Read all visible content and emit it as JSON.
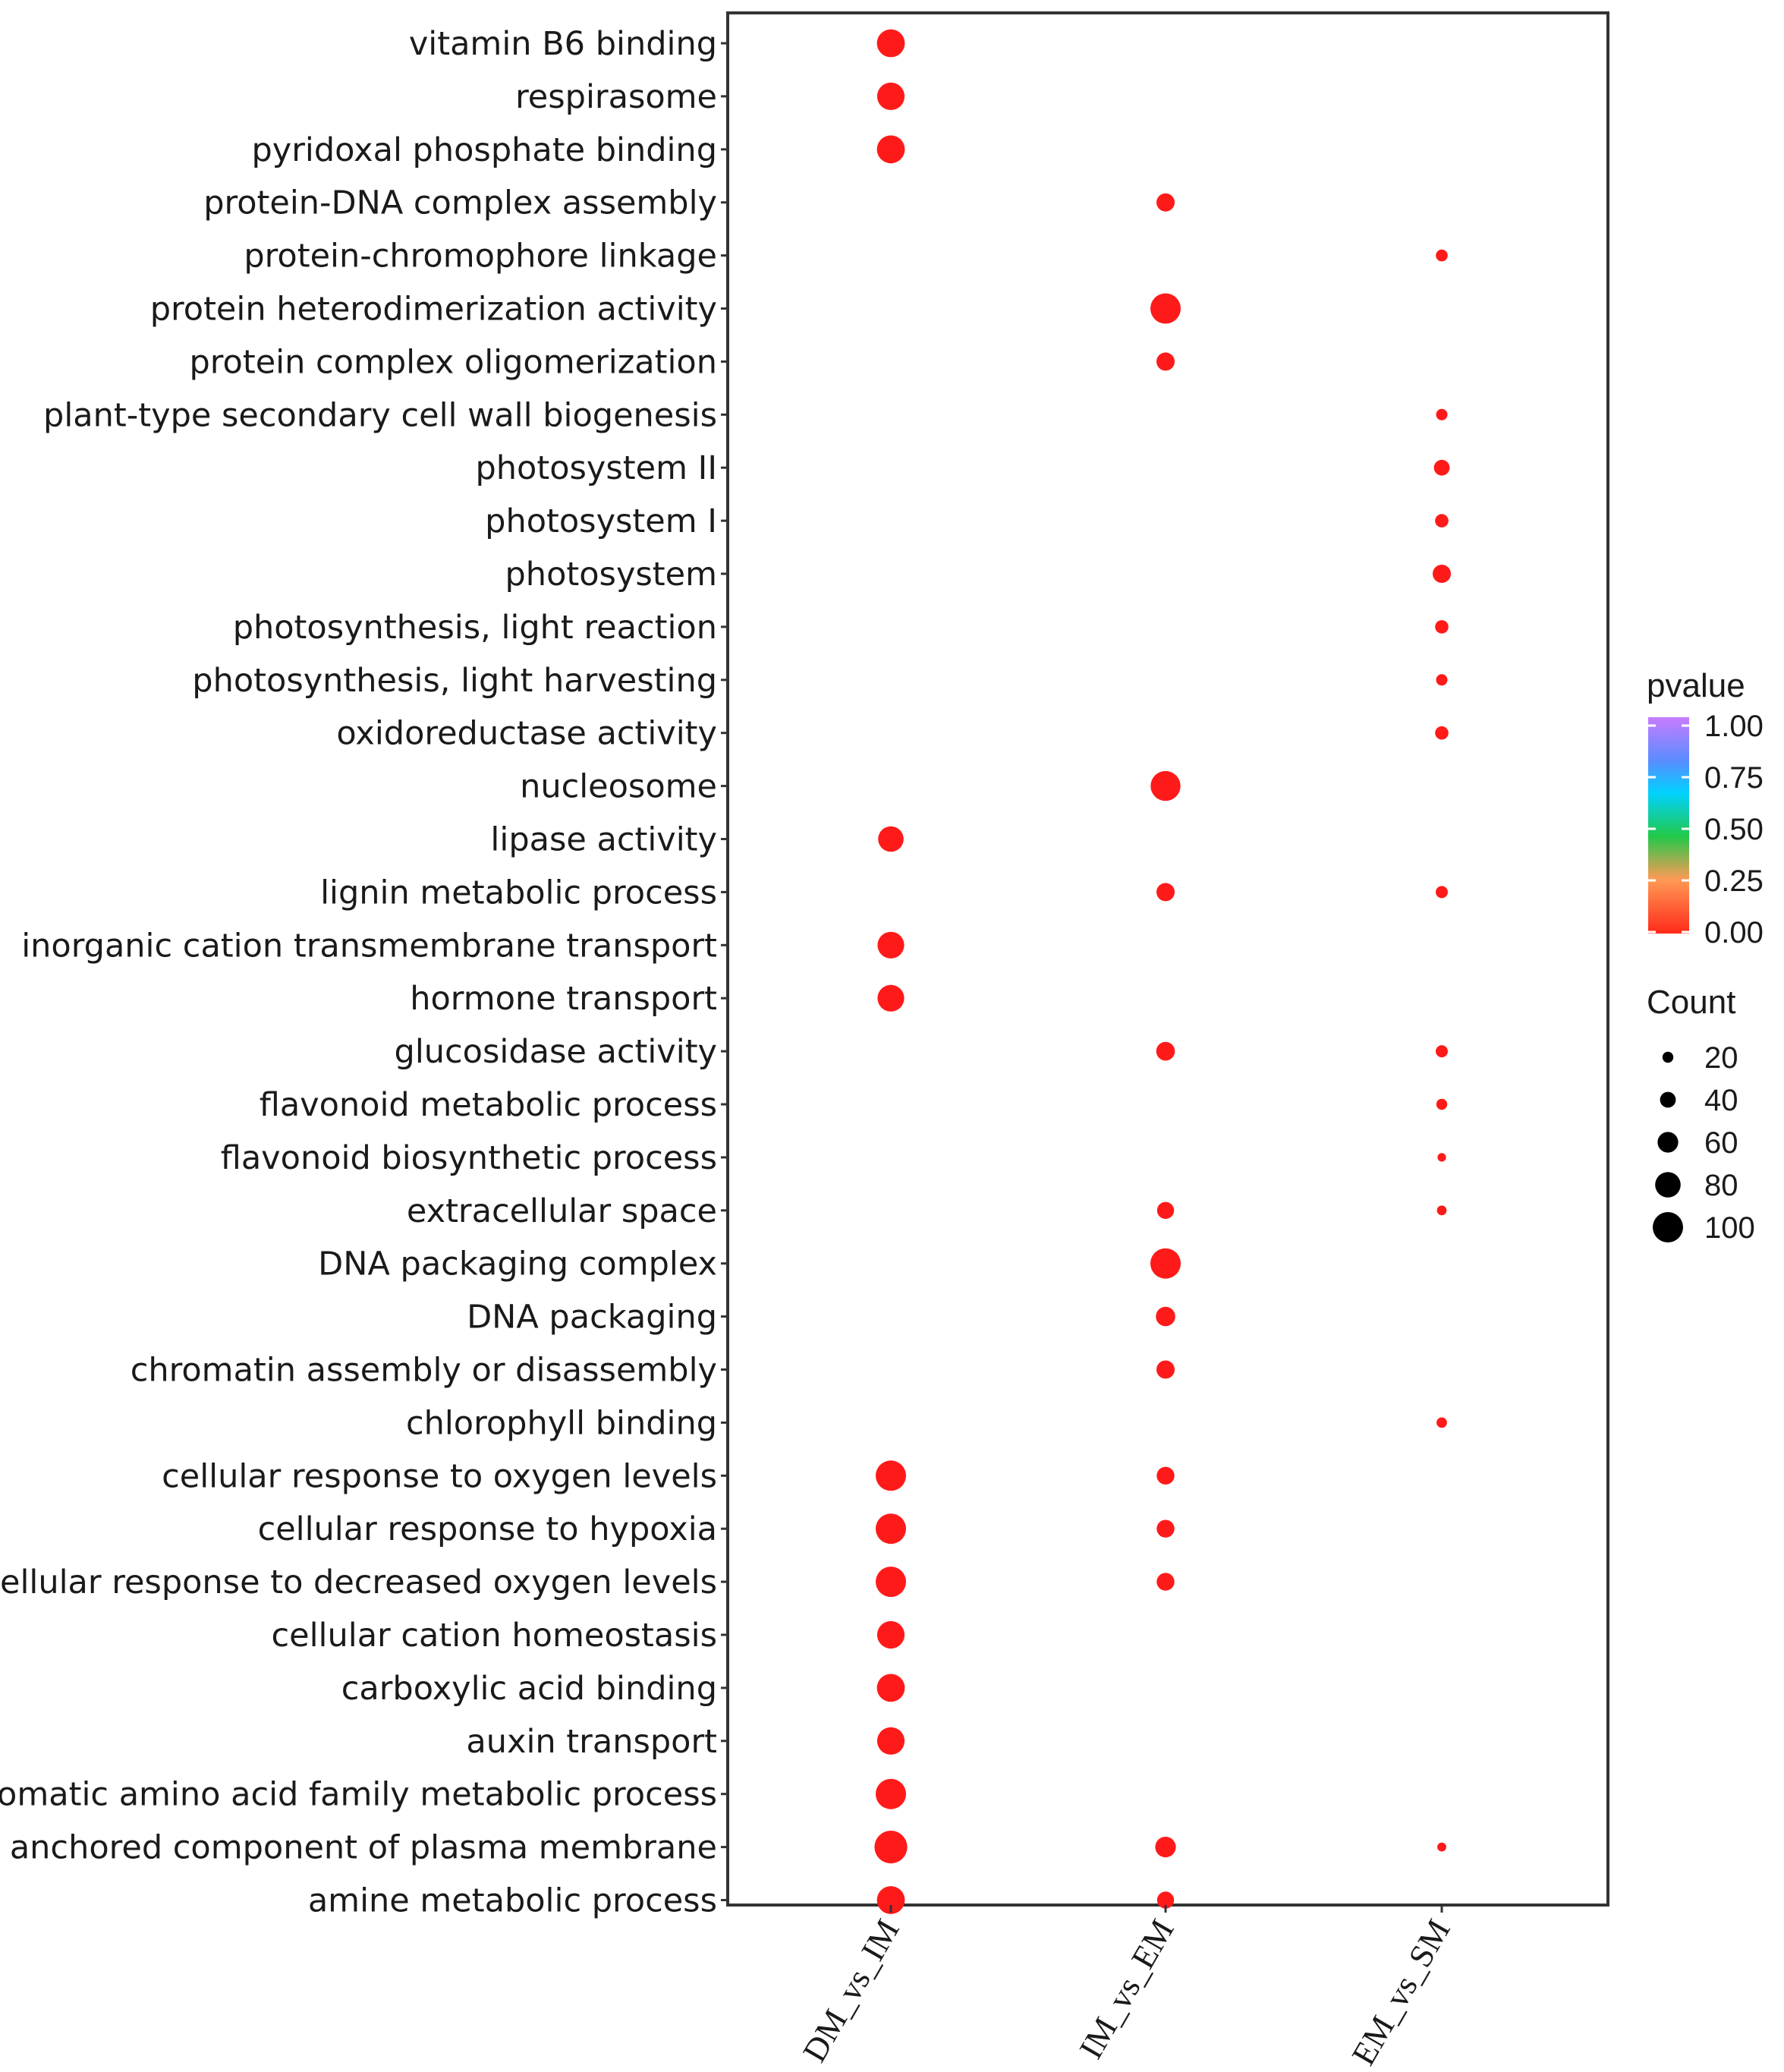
{
  "chart_data": {
    "type": "scatter",
    "subtype": "dotplot",
    "title": "",
    "xlabel": "",
    "ylabel": "",
    "x_categories": [
      "DM_vs_IM",
      "IM_vs_EM",
      "EM_vs_SM"
    ],
    "y_categories": [
      "vitamin B6 binding",
      "respirasome",
      "pyridoxal phosphate binding",
      "protein-DNA complex assembly",
      "protein-chromophore linkage",
      "protein heterodimerization activity",
      "protein complex oligomerization",
      "plant-type secondary cell wall biogenesis",
      "photosystem II",
      "photosystem I",
      "photosystem",
      "photosynthesis, light reaction",
      "photosynthesis, light harvesting",
      "oxidoreductase activity",
      "nucleosome",
      "lipase activity",
      "lignin metabolic process",
      "inorganic cation transmembrane transport",
      "hormone transport",
      "glucosidase activity",
      "flavonoid metabolic process",
      "flavonoid biosynthetic process",
      "extracellular space",
      "DNA packaging complex",
      "DNA packaging",
      "chromatin assembly or disassembly",
      "chlorophyll binding",
      "cellular response to oxygen levels",
      "cellular response to hypoxia",
      "cellular response to decreased oxygen levels",
      "cellular cation homeostasis",
      "carboxylic acid binding",
      "auxin transport",
      "aromatic amino acid family metabolic process",
      "anchored component of plasma membrane",
      "amine metabolic process"
    ],
    "points": [
      {
        "term": "vitamin B6 binding",
        "group": "DM_vs_IM",
        "count": 90,
        "pvalue": 0.0
      },
      {
        "term": "respirasome",
        "group": "DM_vs_IM",
        "count": 88,
        "pvalue": 0.0
      },
      {
        "term": "pyridoxal phosphate binding",
        "group": "DM_vs_IM",
        "count": 90,
        "pvalue": 0.0
      },
      {
        "term": "protein-DNA complex assembly",
        "group": "IM_vs_EM",
        "count": 50,
        "pvalue": 0.0
      },
      {
        "term": "protein-chromophore linkage",
        "group": "EM_vs_SM",
        "count": 24,
        "pvalue": 0.0
      },
      {
        "term": "protein heterodimerization activity",
        "group": "IM_vs_EM",
        "count": 100,
        "pvalue": 0.0
      },
      {
        "term": "protein complex oligomerization",
        "group": "IM_vs_EM",
        "count": 50,
        "pvalue": 0.0
      },
      {
        "term": "plant-type secondary cell wall biogenesis",
        "group": "EM_vs_SM",
        "count": 22,
        "pvalue": 0.0
      },
      {
        "term": "photosystem II",
        "group": "EM_vs_SM",
        "count": 40,
        "pvalue": 0.0
      },
      {
        "term": "photosystem I",
        "group": "EM_vs_SM",
        "count": 30,
        "pvalue": 0.0
      },
      {
        "term": "photosystem",
        "group": "EM_vs_SM",
        "count": 50,
        "pvalue": 0.0
      },
      {
        "term": "photosynthesis, light reaction",
        "group": "EM_vs_SM",
        "count": 30,
        "pvalue": 0.0
      },
      {
        "term": "photosynthesis, light harvesting",
        "group": "EM_vs_SM",
        "count": 22,
        "pvalue": 0.0
      },
      {
        "term": "oxidoreductase activity",
        "group": "EM_vs_SM",
        "count": 30,
        "pvalue": 0.0
      },
      {
        "term": "nucleosome",
        "group": "IM_vs_EM",
        "count": 98,
        "pvalue": 0.0
      },
      {
        "term": "lipase activity",
        "group": "DM_vs_IM",
        "count": 80,
        "pvalue": 0.0
      },
      {
        "term": "lignin metabolic process",
        "group": "IM_vs_EM",
        "count": 50,
        "pvalue": 0.0
      },
      {
        "term": "lignin metabolic process",
        "group": "EM_vs_SM",
        "count": 25,
        "pvalue": 0.0
      },
      {
        "term": "inorganic cation transmembrane transport",
        "group": "DM_vs_IM",
        "count": 85,
        "pvalue": 0.0
      },
      {
        "term": "hormone transport",
        "group": "DM_vs_IM",
        "count": 85,
        "pvalue": 0.0
      },
      {
        "term": "glucosidase activity",
        "group": "IM_vs_EM",
        "count": 52,
        "pvalue": 0.0
      },
      {
        "term": "glucosidase activity",
        "group": "EM_vs_SM",
        "count": 25,
        "pvalue": 0.0
      },
      {
        "term": "flavonoid metabolic process",
        "group": "EM_vs_SM",
        "count": 20,
        "pvalue": 0.0
      },
      {
        "term": "flavonoid biosynthetic process",
        "group": "EM_vs_SM",
        "count": 10,
        "pvalue": 0.0
      },
      {
        "term": "extracellular space",
        "group": "IM_vs_EM",
        "count": 45,
        "pvalue": 0.0
      },
      {
        "term": "extracellular space",
        "group": "EM_vs_SM",
        "count": 15,
        "pvalue": 0.0
      },
      {
        "term": "DNA packaging complex",
        "group": "IM_vs_EM",
        "count": 100,
        "pvalue": 0.0
      },
      {
        "term": "DNA packaging",
        "group": "IM_vs_EM",
        "count": 55,
        "pvalue": 0.0
      },
      {
        "term": "chromatin assembly or disassembly",
        "group": "IM_vs_EM",
        "count": 50,
        "pvalue": 0.0
      },
      {
        "term": "chlorophyll binding",
        "group": "EM_vs_SM",
        "count": 18,
        "pvalue": 0.0
      },
      {
        "term": "cellular response to oxygen levels",
        "group": "DM_vs_IM",
        "count": 100,
        "pvalue": 0.0
      },
      {
        "term": "cellular response to oxygen levels",
        "group": "IM_vs_EM",
        "count": 48,
        "pvalue": 0.0
      },
      {
        "term": "cellular response to hypoxia",
        "group": "DM_vs_IM",
        "count": 100,
        "pvalue": 0.0
      },
      {
        "term": "cellular response to hypoxia",
        "group": "IM_vs_EM",
        "count": 48,
        "pvalue": 0.0
      },
      {
        "term": "cellular response to decreased oxygen levels",
        "group": "DM_vs_IM",
        "count": 100,
        "pvalue": 0.0
      },
      {
        "term": "cellular response to decreased oxygen levels",
        "group": "IM_vs_EM",
        "count": 48,
        "pvalue": 0.0
      },
      {
        "term": "cellular cation homeostasis",
        "group": "DM_vs_IM",
        "count": 88,
        "pvalue": 0.0
      },
      {
        "term": "carboxylic acid binding",
        "group": "DM_vs_IM",
        "count": 90,
        "pvalue": 0.0
      },
      {
        "term": "auxin transport",
        "group": "DM_vs_IM",
        "count": 88,
        "pvalue": 0.0
      },
      {
        "term": "aromatic amino acid family metabolic process",
        "group": "DM_vs_IM",
        "count": 100,
        "pvalue": 0.0
      },
      {
        "term": "anchored component of plasma membrane",
        "group": "DM_vs_IM",
        "count": 110,
        "pvalue": 0.0
      },
      {
        "term": "anchored component of plasma membrane",
        "group": "IM_vs_EM",
        "count": 60,
        "pvalue": 0.0
      },
      {
        "term": "anchored component of plasma membrane",
        "group": "EM_vs_SM",
        "count": 12,
        "pvalue": 0.0
      },
      {
        "term": "amine metabolic process",
        "group": "DM_vs_IM",
        "count": 90,
        "pvalue": 0.0
      },
      {
        "term": "amine metabolic process",
        "group": "IM_vs_EM",
        "count": 45,
        "pvalue": 0.0
      }
    ],
    "legend": {
      "color_title": "pvalue",
      "color_ticks": [
        "1.00",
        "0.75",
        "0.50",
        "0.25",
        "0.00"
      ],
      "size_title": "Count",
      "size_ticks": [
        20,
        40,
        60,
        80,
        100
      ],
      "size_tick_labels": [
        "20",
        "40",
        "60",
        "80",
        "100"
      ],
      "placement": "right"
    },
    "colors": {
      "dot": "#ff1a1a",
      "gradient": [
        "#c77cff",
        "#5a8cff",
        "#00d2ff",
        "#22c94a",
        "#ff9a55",
        "#ff2a1a"
      ],
      "frame": "#333333"
    }
  }
}
